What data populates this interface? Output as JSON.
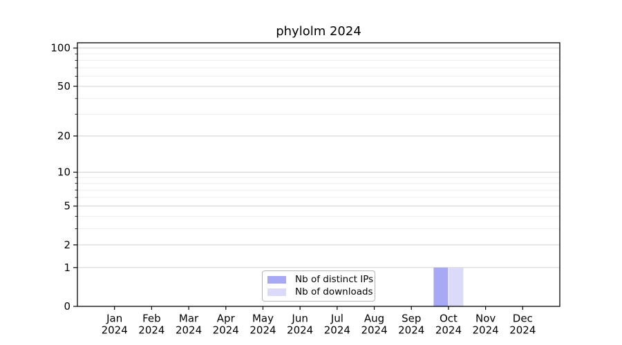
{
  "chart_data": {
    "type": "bar",
    "title": "phylolm 2024",
    "categories": [
      "Jan",
      "Feb",
      "Mar",
      "Apr",
      "May",
      "Jun",
      "Jul",
      "Aug",
      "Sep",
      "Oct",
      "Nov",
      "Dec"
    ],
    "x_year_label": "2024",
    "series": [
      {
        "name": "Nb of distinct IPs",
        "color": "#a8a8f4",
        "values": [
          0,
          0,
          0,
          0,
          0,
          0,
          0,
          0,
          0,
          1,
          0,
          0
        ]
      },
      {
        "name": "Nb of downloads",
        "color": "#dbdbf9",
        "values": [
          0,
          0,
          0,
          0,
          0,
          0,
          0,
          0,
          0,
          1,
          0,
          0
        ]
      }
    ],
    "y_scale": "log1p",
    "ylim": [
      0,
      110
    ],
    "y_ticks": [
      0,
      1,
      2,
      5,
      10,
      20,
      50,
      100
    ],
    "y_minor_ticks": [
      3,
      4,
      6,
      7,
      8,
      9,
      30,
      40,
      60,
      70,
      80,
      90
    ],
    "xlabel": "",
    "ylabel": "",
    "grid": "both",
    "legend_position": "lower center"
  },
  "colors": {
    "axis": "#000000",
    "grid_major": "#d0d0d0",
    "grid_minor": "#ededed",
    "text": "#000000",
    "legend_border": "#b4b4b4",
    "background": "#ffffff"
  }
}
